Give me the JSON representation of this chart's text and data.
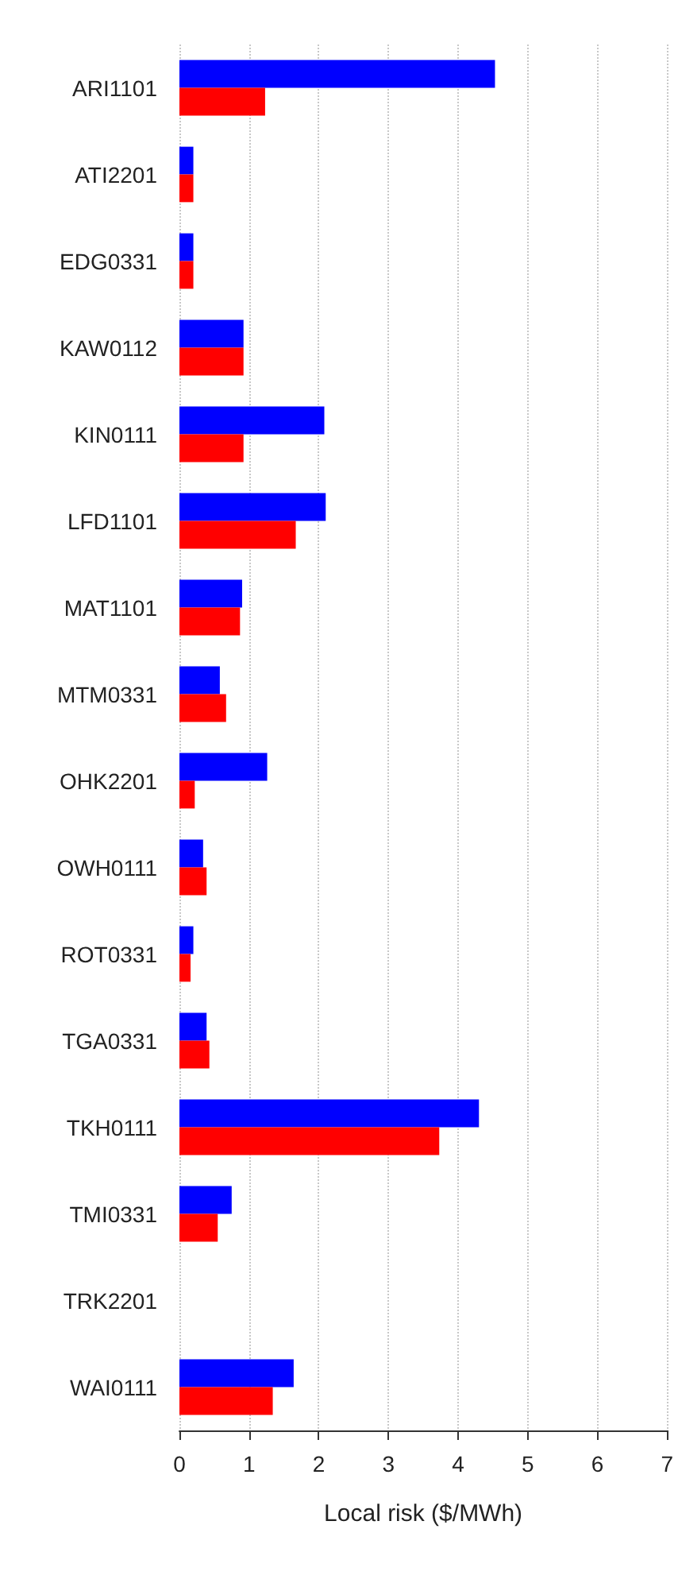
{
  "chart_data": {
    "type": "bar",
    "orientation": "horizontal",
    "xlabel": "Local risk ($/MWh)",
    "categories": [
      "ARI1101",
      "ATI2201",
      "EDG0331",
      "KAW0112",
      "KIN0111",
      "LFD1101",
      "MAT1101",
      "MTM0331",
      "OHK2201",
      "OWH0111",
      "ROT0331",
      "TGA0331",
      "TKH0111",
      "TMI0331",
      "TRK2201",
      "WAI0111"
    ],
    "series": [
      {
        "color": "#0000ff",
        "values": [
          4.53,
          0.2,
          0.2,
          0.92,
          2.08,
          2.1,
          0.9,
          0.58,
          1.26,
          0.34,
          0.2,
          0.39,
          4.3,
          0.75,
          0,
          1.64
        ]
      },
      {
        "color": "#ff0000",
        "values": [
          1.23,
          0.2,
          0.2,
          0.92,
          0.92,
          1.67,
          0.87,
          0.67,
          0.22,
          0.39,
          0.16,
          0.43,
          3.73,
          0.55,
          0,
          1.34
        ]
      }
    ],
    "xlim": [
      0,
      7
    ],
    "xticks": [
      0,
      1,
      2,
      3,
      4,
      5,
      6,
      7
    ],
    "grid": "x"
  }
}
